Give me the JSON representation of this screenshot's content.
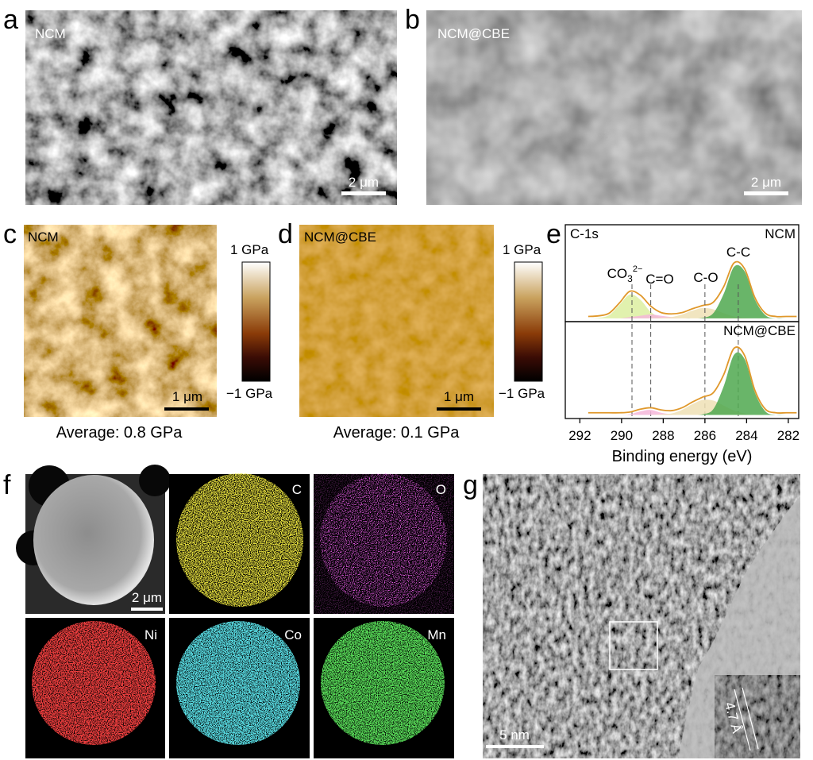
{
  "panels": {
    "a": {
      "label": "a",
      "name": "NCM",
      "scale": "2 μm"
    },
    "b": {
      "label": "b",
      "name": "NCM@CBE",
      "scale": "2 μm"
    },
    "c": {
      "label": "c",
      "name": "NCM",
      "scale": "1 μm",
      "colorbar_max": "1 GPa",
      "colorbar_min": "−1 GPa",
      "average": "Average: 0.8 GPa"
    },
    "d": {
      "label": "d",
      "name": "NCM@CBE",
      "scale": "1 μm",
      "colorbar_max": "1 GPa",
      "colorbar_min": "−1 GPa",
      "average": "Average: 0.1 GPa"
    },
    "e": {
      "label": "e"
    },
    "f": {
      "label": "f",
      "scale": "2 μm",
      "tiles": [
        "C",
        "O",
        "Ni",
        "Co",
        "Mn"
      ]
    },
    "g": {
      "label": "g",
      "scale": "5 nm",
      "spacing": "4.7 Å"
    }
  },
  "chart_data": [
    {
      "type": "line",
      "annotation": "C-1s",
      "sample": "NCM",
      "x": [
        291.6,
        291.1,
        290.6,
        290.1,
        289.6,
        289.1,
        288.6,
        288.1,
        287.6,
        287.1,
        286.6,
        286.1,
        285.6,
        285.1,
        284.6,
        284.1,
        283.6,
        283.1,
        282.6,
        282.1,
        281.6
      ],
      "xlim": [
        292.7,
        281.5
      ],
      "ylim": [
        -0.05,
        1.45
      ],
      "peak_labels": [
        {
          "text": "CO",
          "sub": "3",
          "sup": "2−"
        },
        {
          "text": "C=O"
        },
        {
          "text": "C-O"
        },
        {
          "text": "C-C"
        }
      ],
      "reference_lines": [
        289.5,
        288.6,
        286.0,
        284.4
      ],
      "series": [
        {
          "color": "#dcefa0",
          "fill": true,
          "values": [
            0,
            0.01,
            0.05,
            0.21,
            0.37,
            0.29,
            0.1,
            0.01,
            0,
            0,
            0,
            0,
            0,
            0,
            0,
            0,
            0,
            0,
            0,
            0,
            0
          ]
        },
        {
          "color": "#f4b6d9",
          "fill": true,
          "values": [
            0,
            0,
            0,
            0,
            0.02,
            0.04,
            0.06,
            0.04,
            0.02,
            0,
            0,
            0,
            0,
            0,
            0,
            0,
            0,
            0,
            0,
            0,
            0
          ]
        },
        {
          "color": "#efe1b5",
          "fill": true,
          "values": [
            0,
            0,
            0,
            0,
            0,
            0,
            0,
            0.01,
            0.02,
            0.06,
            0.12,
            0.16,
            0.14,
            0.08,
            0.03,
            0.01,
            0,
            0,
            0,
            0,
            0
          ]
        },
        {
          "color": "#4fa84f",
          "fill": true,
          "values": [
            0,
            0,
            0,
            0,
            0,
            0,
            0,
            0,
            0,
            0,
            0,
            0.01,
            0.08,
            0.38,
            0.8,
            0.73,
            0.29,
            0.05,
            0,
            0,
            0
          ]
        },
        {
          "color": "#e0982b",
          "fill": false,
          "values": [
            0.03,
            0.04,
            0.08,
            0.24,
            0.42,
            0.36,
            0.19,
            0.09,
            0.07,
            0.09,
            0.15,
            0.2,
            0.25,
            0.49,
            0.86,
            0.77,
            0.32,
            0.08,
            0.03,
            0.03,
            0.03
          ]
        }
      ]
    },
    {
      "type": "line",
      "sample": "NCM@CBE",
      "x": [
        291.6,
        291.1,
        290.6,
        290.1,
        289.6,
        289.1,
        288.6,
        288.1,
        287.6,
        287.1,
        286.6,
        286.1,
        285.6,
        285.1,
        284.6,
        284.1,
        283.6,
        283.1,
        282.6,
        282.1,
        281.6
      ],
      "xlim": [
        292.7,
        281.5
      ],
      "ylim": [
        -0.05,
        1.3
      ],
      "xticks": [
        292,
        290,
        288,
        286,
        284,
        282
      ],
      "xlabel": "Binding energy (eV)",
      "series": [
        {
          "color": "#f4b6d9",
          "fill": true,
          "values": [
            0,
            0,
            0,
            0,
            0.01,
            0.05,
            0.07,
            0.03,
            0.01,
            0,
            0,
            0,
            0,
            0,
            0,
            0,
            0,
            0,
            0,
            0,
            0
          ]
        },
        {
          "color": "#efe1b5",
          "fill": true,
          "values": [
            0,
            0,
            0,
            0,
            0,
            0,
            0,
            0.01,
            0.02,
            0.07,
            0.15,
            0.21,
            0.2,
            0.13,
            0.06,
            0.02,
            0,
            0,
            0,
            0,
            0
          ]
        },
        {
          "color": "#4fa84f",
          "fill": true,
          "values": [
            0,
            0,
            0,
            0,
            0,
            0,
            0,
            0,
            0,
            0,
            0,
            0.01,
            0.08,
            0.4,
            0.84,
            0.78,
            0.31,
            0.05,
            0,
            0,
            0
          ]
        },
        {
          "color": "#e0982b",
          "fill": false,
          "values": [
            0.03,
            0.03,
            0.03,
            0.03,
            0.04,
            0.08,
            0.1,
            0.07,
            0.06,
            0.1,
            0.18,
            0.25,
            0.31,
            0.56,
            0.93,
            0.83,
            0.34,
            0.08,
            0.03,
            0.03,
            0.03
          ]
        }
      ]
    }
  ]
}
